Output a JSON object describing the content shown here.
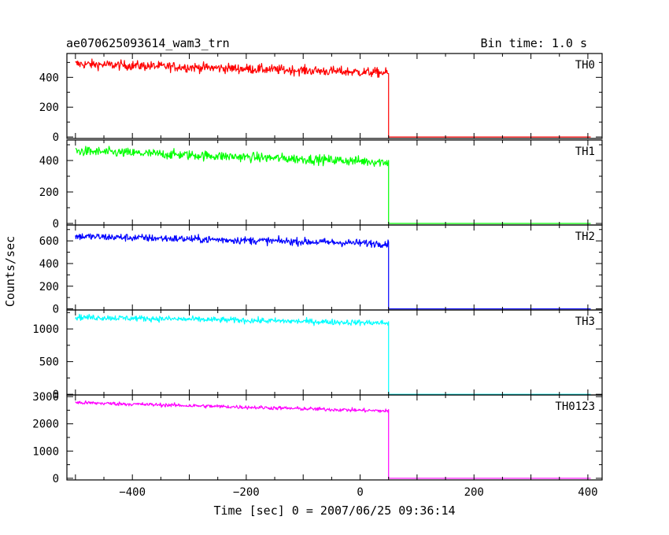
{
  "chart_data": {
    "type": "line",
    "title": "ae070625093614_wam3_trn",
    "bin_time": "Bin time: 1.0 s",
    "xlabel": "Time [sec] 0 = 2007/06/25 09:36:14",
    "ylabel": "Counts/sec",
    "xlim": [
      -515,
      425
    ],
    "x_ticks": [
      -400,
      -200,
      0,
      200,
      400
    ],
    "x_tick_labels": [
      "−400",
      "−200",
      "0",
      "200",
      "400"
    ],
    "grid": false,
    "step_time": 50,
    "x_start": -500,
    "x_end": 405,
    "panels": [
      {
        "name": "TH0",
        "color": "#ff0000",
        "ylim": [
          -10,
          560
        ],
        "y_ticks": [
          0,
          200,
          400
        ],
        "y_tick_labels": [
          "0",
          "200",
          "400"
        ],
        "level_start": 490,
        "level_end": 430,
        "noise": 23,
        "level_after": 0
      },
      {
        "name": "TH1",
        "color": "#00ff00",
        "ylim": [
          -10,
          530
        ],
        "y_ticks": [
          0,
          200,
          400
        ],
        "y_tick_labels": [
          "0",
          "200",
          "400"
        ],
        "level_start": 460,
        "level_end": 390,
        "noise": 22,
        "level_after": 0
      },
      {
        "name": "TH2",
        "color": "#0000ff",
        "ylim": [
          -10,
          740
        ],
        "y_ticks": [
          0,
          200,
          400,
          600
        ],
        "y_tick_labels": [
          "0",
          "200",
          "400",
          "600"
        ],
        "level_start": 640,
        "level_end": 575,
        "noise": 24,
        "level_after": 0
      },
      {
        "name": "TH3",
        "color": "#00ffff",
        "ylim": [
          -10,
          1290
        ],
        "y_ticks": [
          0,
          500,
          1000
        ],
        "y_tick_labels": [
          "0",
          "500",
          "1000"
        ],
        "level_start": 1180,
        "level_end": 1090,
        "noise": 32,
        "level_after": 0
      },
      {
        "name": "TH0123",
        "color": "#ff00ff",
        "ylim": [
          -60,
          3060
        ],
        "y_ticks": [
          0,
          1000,
          2000,
          3000
        ],
        "y_tick_labels": [
          "0",
          "1000",
          "2000",
          "3000"
        ],
        "level_start": 2780,
        "level_end": 2470,
        "noise": 50,
        "level_after": 0
      }
    ]
  }
}
